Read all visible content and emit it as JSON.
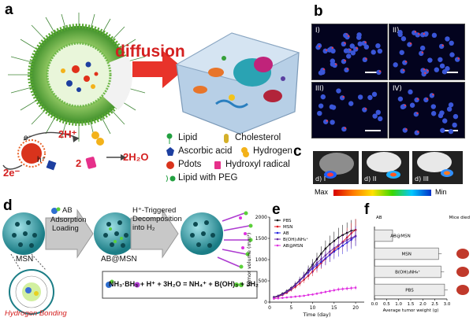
{
  "panel_labels": {
    "a": "a",
    "b": "b",
    "c": "c",
    "d": "d",
    "e": "e",
    "f": "f"
  },
  "panel_a": {
    "diffusion": "diffusion",
    "h2plus": "2H⁺",
    "e_minus": "e⁻",
    "h_plus": "h⁺",
    "two_e": "2e⁻",
    "two": "2",
    "water": "2H₂O",
    "legend": [
      {
        "icon": "lipid-icon",
        "label": "Lipid"
      },
      {
        "icon": "cholesterol-icon",
        "label": "Cholesterol"
      },
      {
        "icon": "ascorbic-acid-icon",
        "label": "Ascorbic acid"
      },
      {
        "icon": "hydrogen-icon",
        "label": "Hydrogen"
      },
      {
        "icon": "pdots-icon",
        "label": "Pdots"
      },
      {
        "icon": "hydroxyl-radical-icon",
        "label": "Hydroxyl radical"
      },
      {
        "icon": "lipid-peg-icon",
        "label": "Lipid with PEG"
      }
    ]
  },
  "panel_b": {
    "tiles": [
      "I)",
      "II)",
      "III)",
      "IV)"
    ]
  },
  "panel_c": {
    "max_label": "Max",
    "min_label": "Min",
    "mice": [
      "d) I",
      "d) II",
      "d) III"
    ]
  },
  "panel_d": {
    "msn": "MSN",
    "ab": "AB",
    "step1_line1": "Adsorption",
    "step1_line2": "Loading",
    "ab_msn": "AB@MSN",
    "step2_line1": "H⁺-Triggered",
    "step2_line2": "Decomposition",
    "step2_line3": "into H₂",
    "hbond": "Hydrogen Bonding",
    "equation": "NH₃·BH₃ + H⁺ + 3H₂O = NH₄⁺ + B(OH)₃ + 3H₂"
  },
  "chart_data": [
    {
      "type": "line",
      "xlabel": "Time (day)",
      "ylabel": "Tumor volume (mm³)",
      "xlim": [
        0,
        22
      ],
      "ylim": [
        0,
        2000
      ],
      "xticks": [
        0,
        5,
        10,
        15,
        20
      ],
      "yticks": [
        0,
        500,
        1000,
        1500,
        2000
      ],
      "series": [
        {
          "name": "PBS",
          "color": "#000000",
          "x": [
            1,
            2,
            3,
            4,
            5,
            6,
            7,
            8,
            9,
            10,
            11,
            12,
            13,
            14,
            15,
            16,
            17,
            18,
            19,
            20
          ],
          "y": [
            120,
            150,
            200,
            260,
            330,
            420,
            520,
            620,
            750,
            880,
            1010,
            1140,
            1260,
            1360,
            1440,
            1520,
            1580,
            1630,
            1680,
            1700
          ]
        },
        {
          "name": "MSN",
          "color": "#e0141e",
          "x": [
            1,
            2,
            3,
            4,
            5,
            6,
            7,
            8,
            9,
            10,
            11,
            12,
            13,
            14,
            15,
            16,
            17,
            18,
            19,
            20
          ],
          "y": [
            100,
            130,
            170,
            220,
            290,
            360,
            440,
            530,
            620,
            720,
            820,
            920,
            1020,
            1120,
            1220,
            1320,
            1420,
            1520,
            1620,
            1700
          ]
        },
        {
          "name": "AB",
          "color": "#2020e0",
          "x": [
            1,
            2,
            3,
            4,
            5,
            6,
            7,
            8,
            9,
            10,
            11,
            12,
            13,
            14,
            15,
            16,
            17,
            18,
            19,
            20
          ],
          "y": [
            110,
            140,
            180,
            240,
            310,
            400,
            500,
            600,
            700,
            790,
            870,
            950,
            1030,
            1110,
            1190,
            1260,
            1330,
            1400,
            1470,
            1550
          ]
        },
        {
          "name": "B(OH)₃NH₄⁺",
          "color": "#6a2aa0",
          "x": [
            1,
            2,
            3,
            4,
            5,
            6,
            7,
            8,
            9,
            10,
            11,
            12,
            13,
            14,
            15,
            16,
            17,
            18,
            19,
            20
          ],
          "y": [
            110,
            140,
            190,
            250,
            320,
            410,
            510,
            610,
            720,
            820,
            920,
            1010,
            1100,
            1190,
            1270,
            1340,
            1400,
            1460,
            1510,
            1560
          ]
        },
        {
          "name": "AB@MSN",
          "color": "#e030e0",
          "x": [
            1,
            2,
            3,
            4,
            5,
            6,
            7,
            8,
            9,
            10,
            11,
            12,
            13,
            14,
            15,
            16,
            17,
            18,
            19,
            20
          ],
          "y": [
            80,
            90,
            100,
            110,
            120,
            130,
            140,
            150,
            170,
            180,
            200,
            220,
            240,
            260,
            280,
            300,
            310,
            320,
            330,
            340
          ]
        }
      ]
    },
    {
      "type": "bar",
      "orientation": "horizontal",
      "xlabel": "Average tumor weight (g)",
      "xlim": [
        0,
        3.0
      ],
      "xticks": [
        0.0,
        0.5,
        1.0,
        1.5,
        2.0,
        2.5,
        3.0
      ],
      "categories": [
        "AB@MSN",
        "MSN",
        "B(OH)₃NH₄⁺",
        "PBS"
      ],
      "values": [
        0.75,
        2.65,
        2.75,
        2.9
      ],
      "top_left_note": "AB",
      "top_right_note": "Mice died"
    }
  ]
}
